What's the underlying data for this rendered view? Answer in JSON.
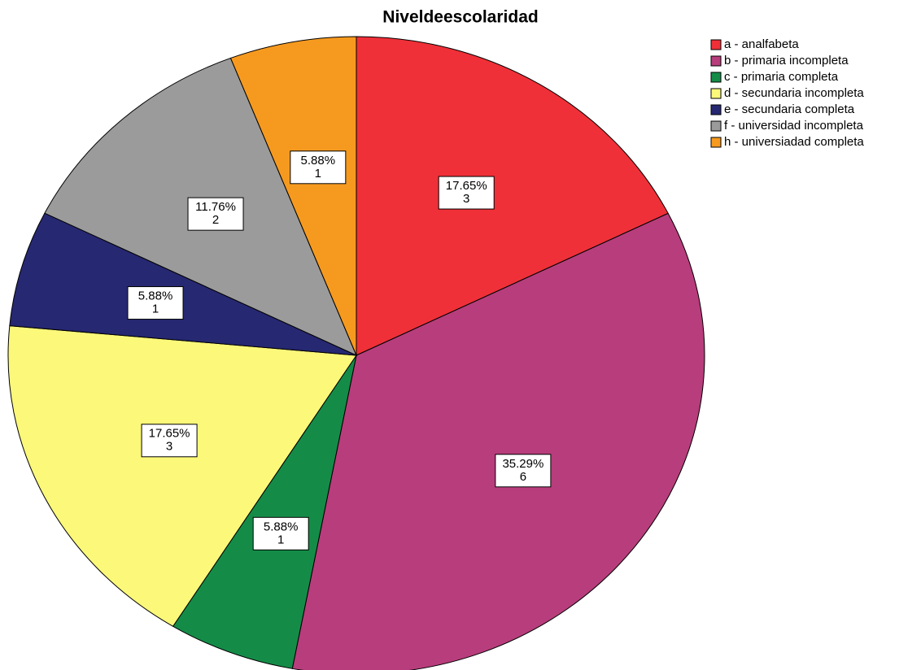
{
  "chart_data": {
    "type": "pie",
    "title": "Niveldeescolaridad",
    "categories": [
      "a - analfabeta",
      "b - primaria incompleta",
      "c - primaria completa",
      "d - secundaria incompleta",
      "e - secundaria completa",
      "f - universidad incompleta",
      "h - universiadad completa"
    ],
    "values": [
      17.65,
      35.29,
      5.88,
      17.65,
      5.88,
      11.76,
      5.88
    ],
    "value_labels": [
      "17.65%",
      "35.29%",
      "5.88%",
      "17.65%",
      "5.88%",
      "11.76%",
      "5.88%"
    ],
    "counts": [
      3,
      6,
      1,
      3,
      1,
      2,
      1
    ],
    "colors": [
      "#ef3038",
      "#b83d7c",
      "#148c48",
      "#fbf87a",
      "#262872",
      "#9b9b9b",
      "#f69a1f"
    ],
    "legend": "top-right"
  }
}
